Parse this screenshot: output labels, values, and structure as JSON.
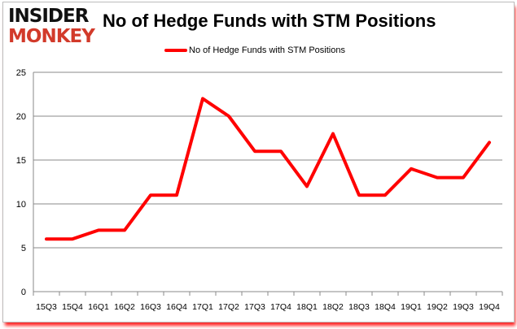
{
  "logo": {
    "line1": "INSIDER",
    "line2": "MONKEY"
  },
  "chart_data": {
    "type": "line",
    "title": "No of Hedge Funds with STM Positions",
    "categories": [
      "15Q3",
      "15Q4",
      "16Q1",
      "16Q2",
      "16Q3",
      "16Q4",
      "17Q1",
      "17Q2",
      "17Q3",
      "17Q4",
      "18Q1",
      "18Q2",
      "18Q3",
      "18Q4",
      "19Q1",
      "19Q2",
      "19Q3",
      "19Q4"
    ],
    "series": [
      {
        "name": "No of Hedge Funds with STM Positions",
        "values": [
          6,
          6,
          7,
          7,
          11,
          11,
          22,
          20,
          16,
          16,
          12,
          18,
          11,
          11,
          14,
          13,
          13,
          17
        ],
        "color": "#ff0000"
      }
    ],
    "ylim": [
      0,
      25
    ],
    "yticks": [
      0,
      5,
      10,
      15,
      20,
      25
    ],
    "grid": true,
    "legend": "top-center"
  }
}
